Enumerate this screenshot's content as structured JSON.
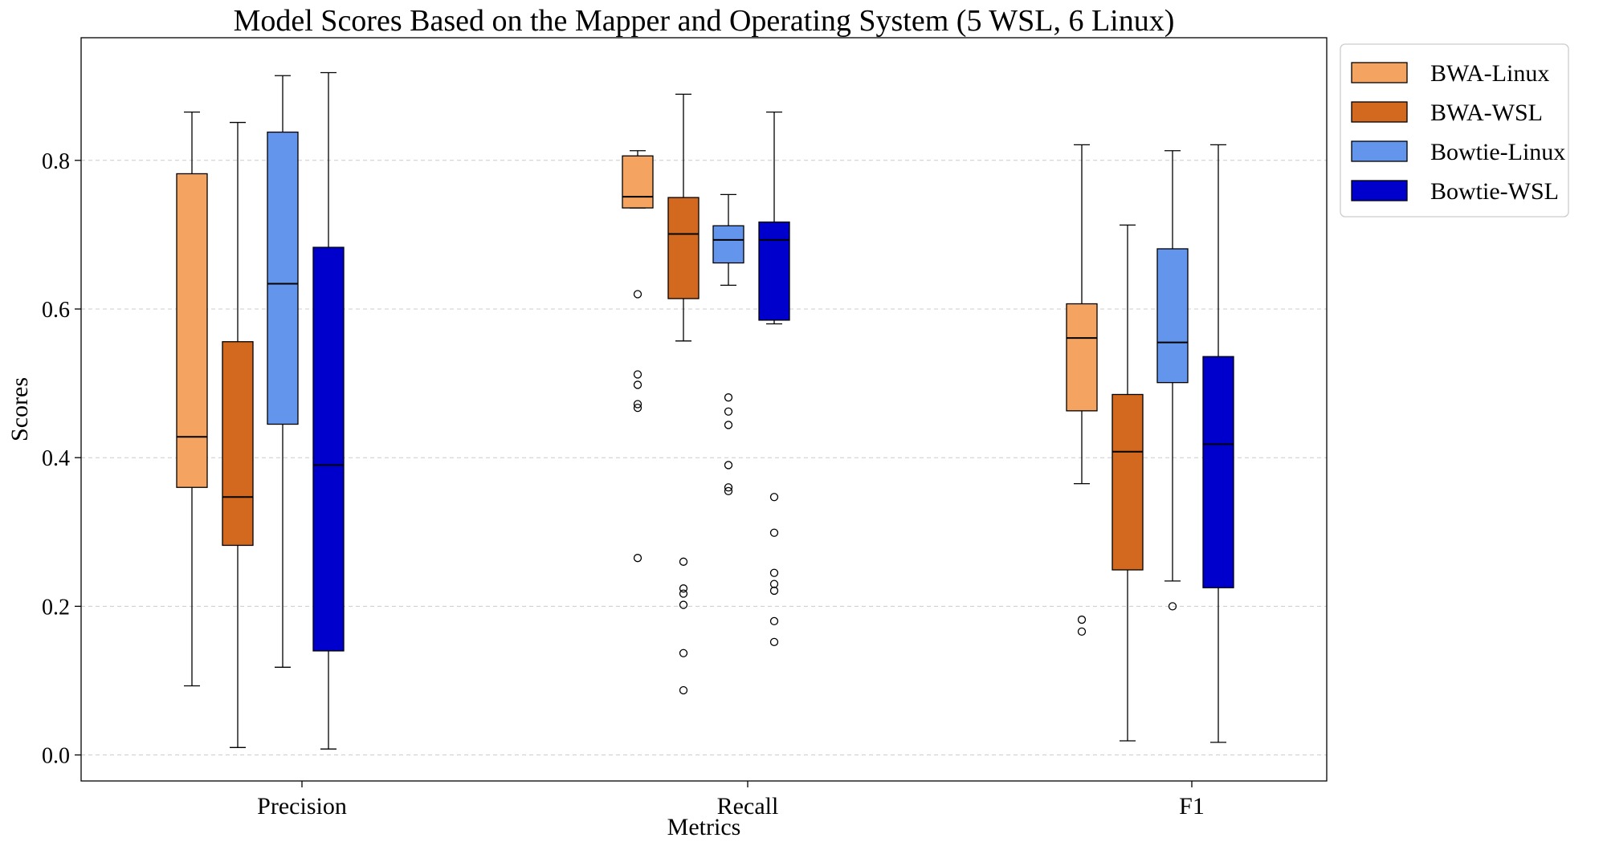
{
  "chart_data": {
    "type": "box",
    "title": "Model Scores Based on the Mapper and Operating System (5 WSL, 6 Linux)",
    "xlabel": "Metrics",
    "ylabel": "Scores",
    "categories": [
      "Precision",
      "Recall",
      "F1"
    ],
    "ylim": [
      -0.035,
      0.965
    ],
    "yticks": [
      0.0,
      0.2,
      0.4,
      0.6,
      0.8
    ],
    "ytick_labels": [
      "0.0",
      "0.2",
      "0.4",
      "0.6",
      "0.8"
    ],
    "grid": "y-dashed",
    "legend_position": "outside-top-right",
    "series": [
      {
        "name": "BWA-Linux",
        "color": "#F4A460",
        "boxes": [
          {
            "category": "Precision",
            "whisker_low": 0.093,
            "q1": 0.36,
            "median": 0.428,
            "q3": 0.782,
            "whisker_high": 0.865,
            "outliers": []
          },
          {
            "category": "Recall",
            "whisker_low": 0.736,
            "q1": 0.736,
            "median": 0.751,
            "q3": 0.806,
            "whisker_high": 0.813,
            "outliers": [
              0.62,
              0.512,
              0.498,
              0.472,
              0.467,
              0.265
            ]
          },
          {
            "category": "F1",
            "whisker_low": 0.365,
            "q1": 0.463,
            "median": 0.561,
            "q3": 0.607,
            "whisker_high": 0.821,
            "outliers": [
              0.182,
              0.166
            ]
          }
        ]
      },
      {
        "name": "BWA-WSL",
        "color": "#D2691E",
        "boxes": [
          {
            "category": "Precision",
            "whisker_low": 0.01,
            "q1": 0.282,
            "median": 0.347,
            "q3": 0.556,
            "whisker_high": 0.851,
            "outliers": []
          },
          {
            "category": "Recall",
            "whisker_low": 0.557,
            "q1": 0.614,
            "median": 0.701,
            "q3": 0.75,
            "whisker_high": 0.889,
            "outliers": [
              0.26,
              0.224,
              0.217,
              0.202,
              0.137,
              0.087
            ]
          },
          {
            "category": "F1",
            "whisker_low": 0.019,
            "q1": 0.249,
            "median": 0.408,
            "q3": 0.485,
            "whisker_high": 0.713,
            "outliers": []
          }
        ]
      },
      {
        "name": "Bowtie-Linux",
        "color": "#6495ED",
        "boxes": [
          {
            "category": "Precision",
            "whisker_low": 0.118,
            "q1": 0.445,
            "median": 0.634,
            "q3": 0.838,
            "whisker_high": 0.914,
            "outliers": []
          },
          {
            "category": "Recall",
            "whisker_low": 0.632,
            "q1": 0.662,
            "median": 0.693,
            "q3": 0.712,
            "whisker_high": 0.754,
            "outliers": [
              0.481,
              0.462,
              0.444,
              0.39,
              0.36,
              0.355
            ]
          },
          {
            "category": "F1",
            "whisker_low": 0.234,
            "q1": 0.501,
            "median": 0.555,
            "q3": 0.681,
            "whisker_high": 0.813,
            "outliers": [
              0.2
            ]
          }
        ]
      },
      {
        "name": "Bowtie-WSL",
        "color": "#0000CD",
        "boxes": [
          {
            "category": "Precision",
            "whisker_low": 0.008,
            "q1": 0.14,
            "median": 0.39,
            "q3": 0.683,
            "whisker_high": 0.918,
            "outliers": []
          },
          {
            "category": "Recall",
            "whisker_low": 0.58,
            "q1": 0.585,
            "median": 0.693,
            "q3": 0.717,
            "whisker_high": 0.865,
            "outliers": [
              0.347,
              0.299,
              0.245,
              0.23,
              0.221,
              0.18,
              0.152
            ]
          },
          {
            "category": "F1",
            "whisker_low": 0.017,
            "q1": 0.225,
            "median": 0.418,
            "q3": 0.536,
            "whisker_high": 0.821,
            "outliers": []
          }
        ]
      }
    ]
  }
}
